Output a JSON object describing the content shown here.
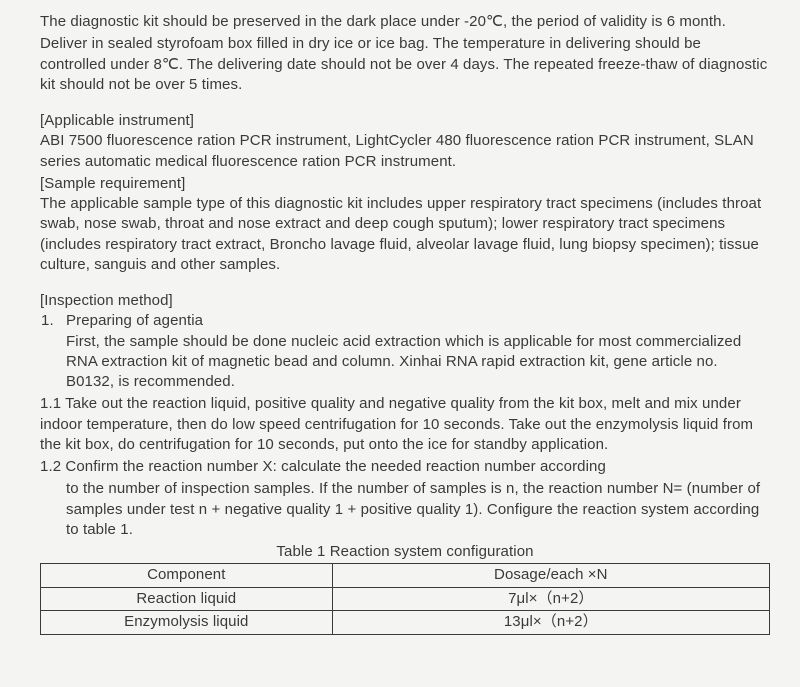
{
  "p_storage1": "The diagnostic kit should be preserved in the dark place under -20℃, the period of validity is 6 month.",
  "p_storage2": "Deliver in sealed styrofoam box filled in dry ice or ice bag. The temperature in delivering should be controlled under 8℃. The delivering date should not be over 4 days. The repeated freeze-thaw of diagnostic kit should not be over 5 times.",
  "h_instrument": "[Applicable instrument]",
  "p_instrument": "ABI 7500 fluorescence ration PCR instrument, LightCycler 480 fluorescence ration PCR instrument, SLAN series automatic medical fluorescence ration PCR instrument.",
  "h_sample": " [Sample requirement]",
  "p_sample": "The applicable sample type of this diagnostic kit includes upper respiratory tract specimens (includes throat swab, nose swab, throat and nose extract and deep cough sputum); lower respiratory tract specimens (includes respiratory tract extract, Broncho lavage fluid, alveolar lavage fluid, lung biopsy specimen); tissue culture, sanguis and other samples.",
  "h_inspect": "[Inspection method]",
  "li1_title": "Preparing of agentia",
  "li1_body": "First, the sample should be done nucleic acid extraction which is applicable for most commercialized RNA extraction kit of magnetic bead and column. Xinhai RNA rapid extraction kit, gene article no. B0132, is recommended.",
  "p_1_1": "1.1 Take out the reaction liquid, positive quality and negative quality from the kit box, melt and mix under indoor temperature, then do low speed centrifugation for 10 seconds. Take out the enzymolysis liquid from the kit box, do centrifugation for 10 seconds, put onto the ice for standby application.",
  "p_1_2a": "1.2  Confirm the reaction number X: calculate the needed reaction number according",
  "p_1_2b": "to the number of inspection samples. If the number of samples is n, the reaction number N= (number of samples under test n + negative quality 1 + positive quality 1). Configure the reaction system according to table 1.",
  "caption": "Table 1 Reaction system configuration",
  "table": {
    "head_c1": "Component",
    "head_c2": "Dosage/each ×N",
    "r1c1": "Reaction liquid",
    "r1c2": "7μl×（n+2）",
    "r2c1": "Enzymolysis liquid",
    "r2c2": "13μl×（n+2）"
  }
}
